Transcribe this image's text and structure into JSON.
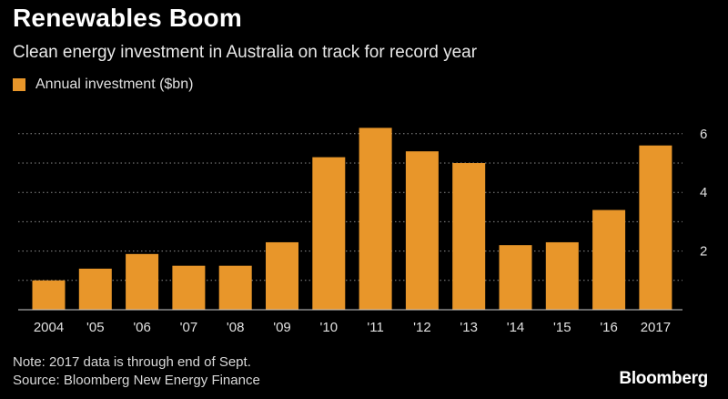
{
  "header": {
    "title": "Renewables Boom",
    "subtitle": "Clean energy investment in Australia on track for record year"
  },
  "legend": {
    "label": "Annual investment ($bn)"
  },
  "footer": {
    "note": "Note: 2017 data is through end of Sept.",
    "source": "Source: Bloomberg New Energy Finance",
    "brand": "Bloomberg"
  },
  "colors": {
    "bar": "#e8962a",
    "background": "#000000",
    "grid": "#8a8a8a",
    "text": "#ffffff"
  },
  "chart_data": {
    "type": "bar",
    "title": "Renewables Boom",
    "subtitle": "Clean energy investment in Australia on track for record year",
    "categories": [
      "2004",
      "'05",
      "'06",
      "'07",
      "'08",
      "'09",
      "'10",
      "'11",
      "'12",
      "'13",
      "'14",
      "'15",
      "'16",
      "2017"
    ],
    "series": [
      {
        "name": "Annual investment ($bn)",
        "values": [
          1.0,
          1.4,
          1.9,
          1.5,
          1.5,
          2.3,
          5.2,
          6.2,
          5.4,
          5.0,
          2.2,
          2.3,
          3.4,
          5.6
        ]
      }
    ],
    "ylim": [
      0,
      6.2
    ],
    "yticks": [
      2,
      4,
      6
    ],
    "gridlines": [
      1,
      2,
      3,
      4,
      5,
      6
    ],
    "ylabel_position": "right",
    "xlabel": "",
    "ylabel": ""
  }
}
